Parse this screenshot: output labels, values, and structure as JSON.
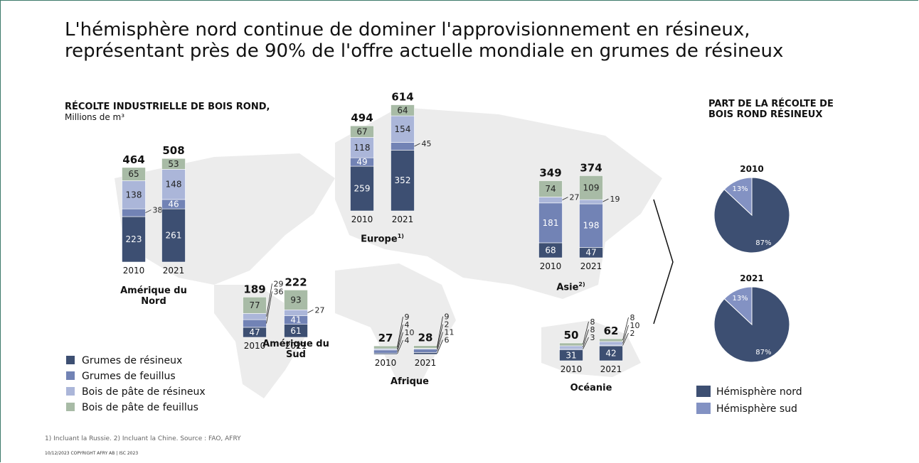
{
  "title": [
    "L'hémisphère nord continue de dominer l'approvisionnement en résineux,",
    "représentant près de 90% de l'offre actuelle mondiale en grumes de résineux"
  ],
  "chart_data": {
    "type": "stacked-bar-map",
    "heading": "RÉCOLTE INDUSTRIELLE DE BOIS ROND,",
    "unit": "Millions de m³",
    "series": [
      {
        "name": "Grumes de résineux",
        "color": "#3d4f72"
      },
      {
        "name": "Grumes de feuillus",
        "color": "#7283b5"
      },
      {
        "name": "Bois de pâte de résineux",
        "color": "#abb6d9"
      },
      {
        "name": "Bois de pâte de feuillus",
        "color": "#a8bba6"
      }
    ],
    "regions": [
      {
        "name": "Amérique du Nord",
        "bars": [
          {
            "year": "2010",
            "total": 464,
            "values": [
              223,
              38,
              138,
              65
            ]
          },
          {
            "year": "2021",
            "total": 508,
            "values": [
              261,
              46,
              148,
              53
            ]
          }
        ]
      },
      {
        "name": "Europe",
        "note": "1)",
        "bars": [
          {
            "year": "2010",
            "total": 494,
            "values": [
              259,
              49,
              118,
              67
            ]
          },
          {
            "year": "2021",
            "total": 614,
            "values": [
              352,
              45,
              154,
              64
            ]
          }
        ]
      },
      {
        "name": "Asie",
        "note": "2)",
        "bars": [
          {
            "year": "2010",
            "total": 349,
            "values": [
              68,
              181,
              27,
              74
            ]
          },
          {
            "year": "2021",
            "total": 374,
            "values": [
              47,
              198,
              19,
              109
            ]
          }
        ]
      },
      {
        "name": "Amérique du Sud",
        "bars": [
          {
            "year": "2010",
            "total": 189,
            "values": [
              47,
              36,
              29,
              77
            ]
          },
          {
            "year": "2021",
            "total": 222,
            "values": [
              61,
              41,
              27,
              93
            ]
          }
        ]
      },
      {
        "name": "Afrique",
        "bars": [
          {
            "year": "2010",
            "total": 27,
            "values": [
              4,
              10,
              4,
              9
            ]
          },
          {
            "year": "2021",
            "total": 28,
            "values": [
              6,
              11,
              2,
              9
            ]
          }
        ]
      },
      {
        "name": "Océanie",
        "bars": [
          {
            "year": "2010",
            "total": 50,
            "values": [
              31,
              3,
              8,
              8
            ]
          },
          {
            "year": "2021",
            "total": 62,
            "values": [
              42,
              2,
              10,
              8
            ]
          }
        ]
      }
    ]
  },
  "pie_data": {
    "type": "pie",
    "title": "PART DE LA RÉCOLTE DE BOIS ROND RÉSINEUX",
    "series": [
      {
        "name": "Hémisphère nord",
        "color": "#3d4f72"
      },
      {
        "name": "Hémisphère sud",
        "color": "#8392c3"
      }
    ],
    "pies": [
      {
        "year": "2010",
        "values": [
          87,
          13
        ],
        "value_labels": [
          "87%",
          "13%"
        ]
      },
      {
        "year": "2021",
        "values": [
          87,
          13
        ],
        "value_labels": [
          "87%",
          "13%"
        ]
      }
    ]
  },
  "footnote": "1) Incluant la Russie. 2) Incluant la Chine. Source : FAO, AFRY",
  "copyright": "10/12/2023   COPYRIGHT AFRY AB | ISC 2023"
}
